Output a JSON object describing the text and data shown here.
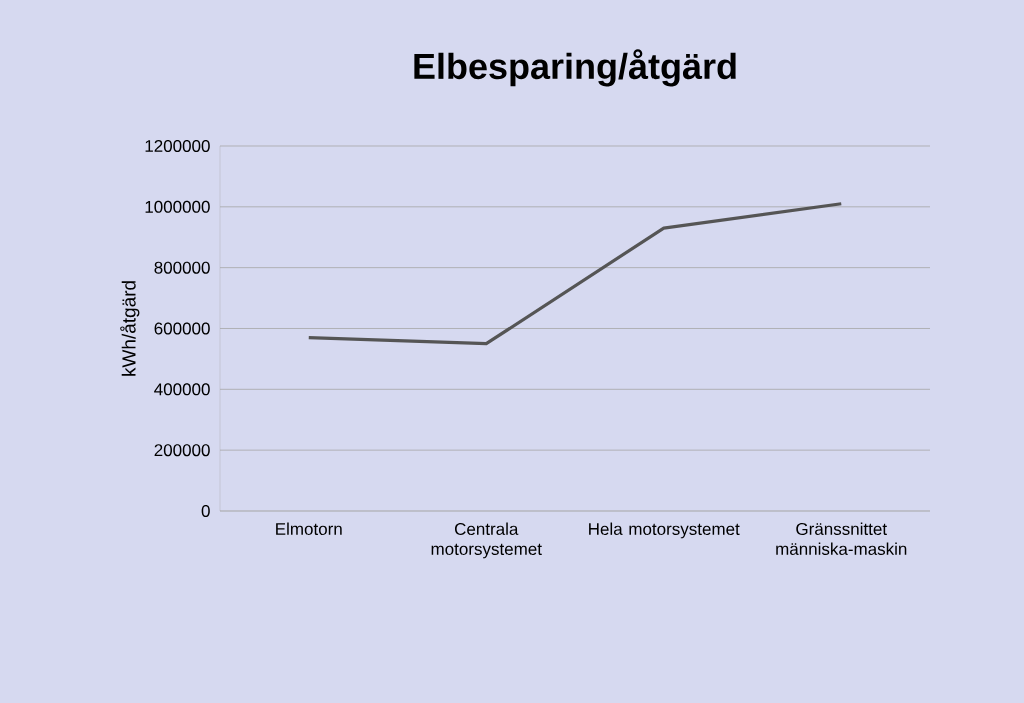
{
  "chart_data": {
    "type": "line",
    "title": "Elbesparing/åtgärd",
    "ylabel": "kWh/åtgärd",
    "categories": [
      "Elmotorn",
      "Centrala motorsystemet",
      "Hela motorsystemet",
      "Gränssnittet människa-maskin"
    ],
    "series": [
      {
        "color": "#555555",
        "values": [
          570000,
          550000,
          930000,
          1010000
        ]
      }
    ],
    "ylim": [
      0,
      1200000
    ],
    "yticks": [
      0,
      200000,
      400000,
      600000,
      800000,
      1000000,
      1200000
    ],
    "grid": "y",
    "marker": "none",
    "line_style": "solid"
  }
}
